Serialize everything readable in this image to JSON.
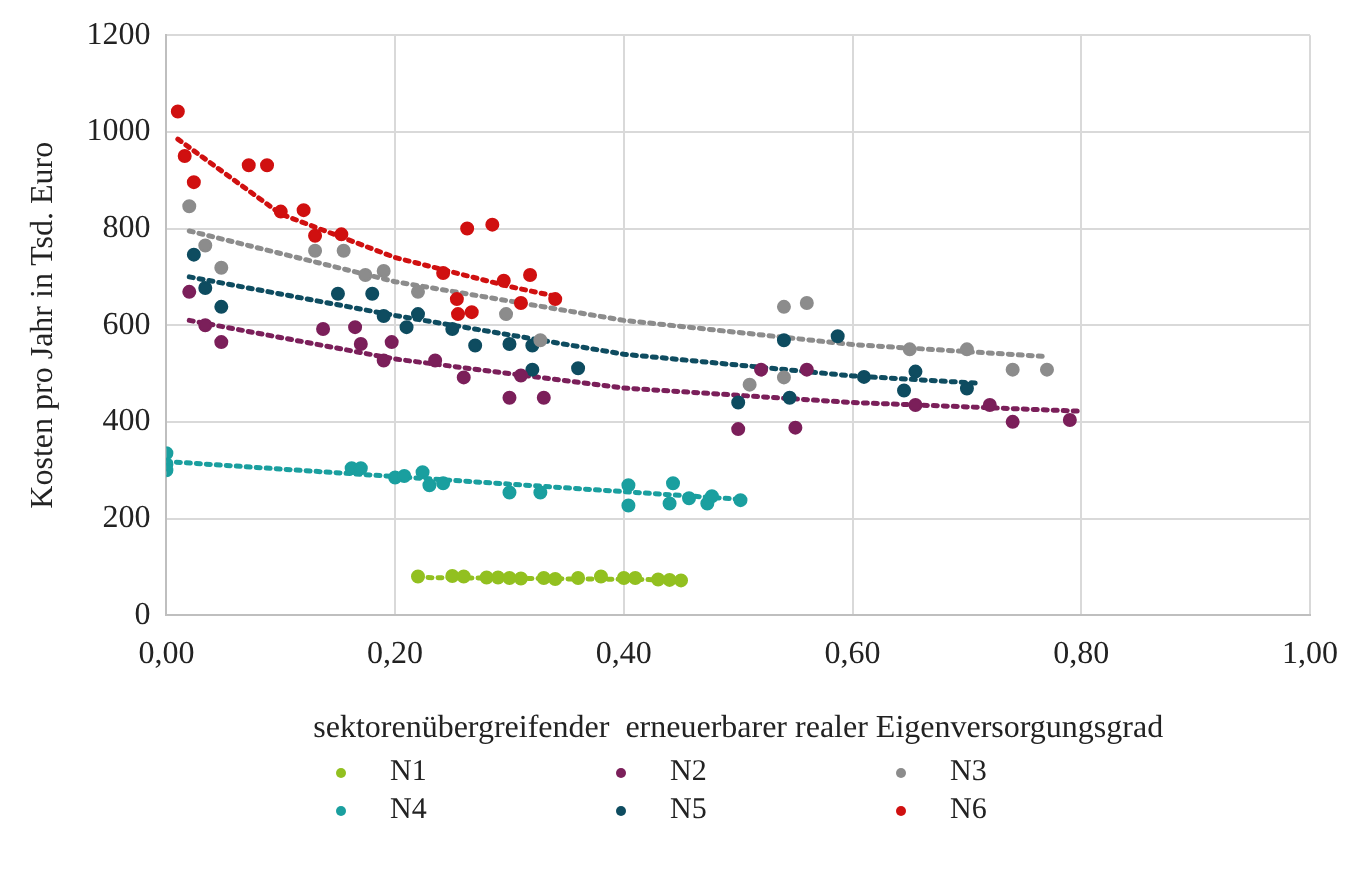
{
  "chart_data": {
    "type": "scatter",
    "xlabel": "sektorenübergreifender  erneuerbarer realer Eigenversorgungsgrad",
    "ylabel": "Kosten pro Jahr in Tsd. Euro",
    "xlim": [
      0,
      1
    ],
    "xticks": [
      {
        "value": 0,
        "label": "0,00"
      },
      {
        "value": 0.2,
        "label": "0,20"
      },
      {
        "value": 0.4,
        "label": "0,40"
      },
      {
        "value": 0.6,
        "label": "0,60"
      },
      {
        "value": 0.8,
        "label": "0,80"
      },
      {
        "value": 1,
        "label": "1,00"
      }
    ],
    "ylim": [
      0,
      1200
    ],
    "yticks": [
      0,
      200,
      400,
      600,
      800,
      1000,
      1200
    ],
    "grid": true,
    "legend": "bottom",
    "marker": "circle",
    "series": [
      {
        "name": "N1",
        "color": "#92c020",
        "x": [
          0.22,
          0.25,
          0.26,
          0.28,
          0.29,
          0.3,
          0.31,
          0.33,
          0.34,
          0.36,
          0.38,
          0.4,
          0.41,
          0.43,
          0.44,
          0.45
        ],
        "values": [
          80,
          81,
          80,
          78,
          78,
          77,
          76,
          77,
          75,
          77,
          80,
          77,
          77,
          74,
          73,
          72
        ]
      },
      {
        "name": "N2",
        "color": "#7b1f5a",
        "x": [
          0.02,
          0.034,
          0.048,
          0.137,
          0.165,
          0.17,
          0.197,
          0.19,
          0.235,
          0.26,
          0.3,
          0.31,
          0.33,
          0.52,
          0.5,
          0.55,
          0.56,
          0.655,
          0.72,
          0.74,
          0.79
        ],
        "values": [
          669,
          600,
          565,
          592,
          596,
          561,
          565,
          527,
          527,
          492,
          450,
          496,
          450,
          508,
          385,
          388,
          508,
          435,
          435,
          400,
          404
        ]
      },
      {
        "name": "N3",
        "color": "#8c8c8c",
        "x": [
          0.02,
          0.034,
          0.048,
          0.13,
          0.155,
          0.174,
          0.19,
          0.22,
          0.297,
          0.327,
          0.51,
          0.54,
          0.56,
          0.54,
          0.65,
          0.7,
          0.74,
          0.77
        ],
        "values": [
          846,
          765,
          719,
          754,
          754,
          704,
          712,
          669,
          623,
          569,
          477,
          638,
          646,
          492,
          550,
          550,
          508,
          508
        ]
      },
      {
        "name": "N4",
        "color": "#1a9f9f",
        "x": [
          0,
          0,
          0,
          0.162,
          0.17,
          0.2,
          0.208,
          0.224,
          0.23,
          0.242,
          0.3,
          0.327,
          0.404,
          0.404,
          0.44,
          0.443,
          0.457,
          0.473,
          0.477,
          0.502
        ],
        "values": [
          335,
          312,
          300,
          304,
          304,
          285,
          288,
          296,
          269,
          273,
          254,
          254,
          269,
          227,
          231,
          273,
          242,
          231,
          246,
          238
        ]
      },
      {
        "name": "N5",
        "color": "#0e4c60",
        "x": [
          0.024,
          0.034,
          0.048,
          0.15,
          0.18,
          0.19,
          0.21,
          0.22,
          0.25,
          0.27,
          0.3,
          0.32,
          0.32,
          0.36,
          0.5,
          0.54,
          0.545,
          0.587,
          0.61,
          0.645,
          0.655,
          0.7
        ],
        "values": [
          746,
          677,
          638,
          665,
          665,
          619,
          596,
          623,
          592,
          558,
          561,
          558,
          508,
          511,
          440,
          569,
          450,
          577,
          493,
          465,
          504,
          469
        ]
      },
      {
        "name": "N6",
        "color": "#d01010",
        "x": [
          0.01,
          0.016,
          0.024,
          0.072,
          0.088,
          0.1,
          0.12,
          0.13,
          0.153,
          0.242,
          0.254,
          0.255,
          0.267,
          0.263,
          0.285,
          0.295,
          0.31,
          0.318,
          0.34
        ],
        "values": [
          1042,
          950,
          896,
          931,
          931,
          835,
          838,
          785,
          788,
          708,
          654,
          623,
          627,
          800,
          808,
          692,
          646,
          704,
          654
        ]
      },
      {
        "type": "line",
        "color": "#92c020",
        "line_style": "dotted",
        "marker": "none",
        "x": [
          0.22,
          0.45
        ],
        "values": [
          78,
          73
        ]
      },
      {
        "type": "line",
        "color": "#7b1f5a",
        "line_style": "dotted",
        "marker": "none",
        "x": [
          0.02,
          0.2,
          0.4,
          0.6,
          0.8
        ],
        "values": [
          610,
          530,
          470,
          440,
          422
        ]
      },
      {
        "type": "line",
        "color": "#8c8c8c",
        "line_style": "dotted",
        "marker": "none",
        "x": [
          0.02,
          0.2,
          0.4,
          0.6,
          0.77
        ],
        "values": [
          795,
          690,
          610,
          560,
          535
        ]
      },
      {
        "type": "line",
        "color": "#1a9f9f",
        "line_style": "dotted",
        "marker": "none",
        "x": [
          0,
          0.5
        ],
        "values": [
          318,
          240
        ]
      },
      {
        "type": "line",
        "color": "#0e4c60",
        "line_style": "dotted",
        "marker": "none",
        "x": [
          0.02,
          0.2,
          0.4,
          0.6,
          0.71
        ],
        "values": [
          700,
          620,
          540,
          495,
          480
        ]
      },
      {
        "type": "line",
        "color": "#d01010",
        "line_style": "dotted",
        "marker": "none",
        "x": [
          0.01,
          0.1,
          0.2,
          0.3,
          0.34
        ],
        "values": [
          985,
          830,
          740,
          680,
          660
        ]
      }
    ]
  }
}
